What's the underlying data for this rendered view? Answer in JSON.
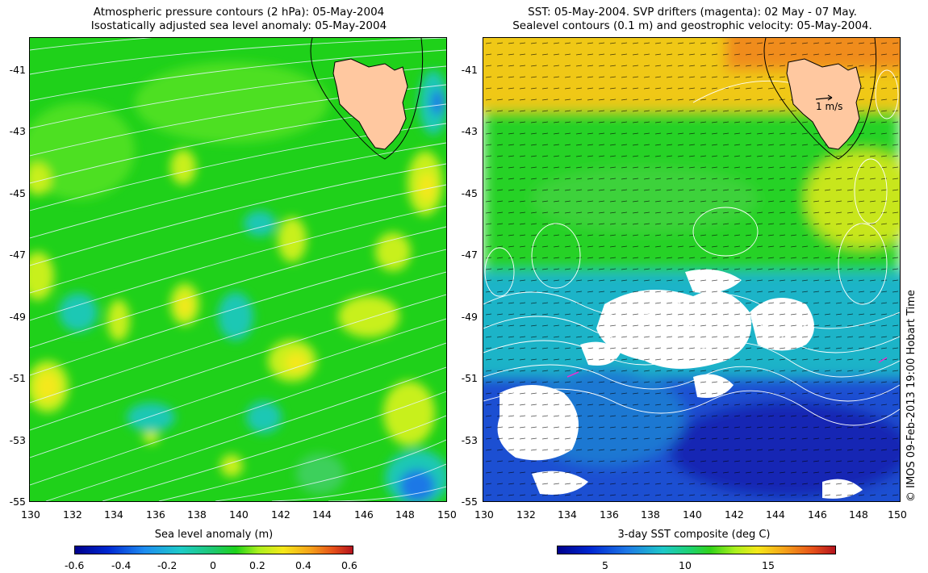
{
  "left": {
    "title_line1": "Atmospheric pressure contours (2 hPa): 05-May-2004",
    "title_line2": "Isostatically adjusted sea level anomaly: 05-May-2004",
    "colorbar_label": "Sea level anomaly (m)",
    "colorbar_ticks": [
      "-0.6",
      "-0.4",
      "-0.2",
      "0",
      "0.2",
      "0.4",
      "0.6"
    ],
    "colors": {
      "base": "#1fd11a",
      "high": "#c8f01e",
      "peak": "#f5e81a",
      "low": "#1ec8b4",
      "lowest": "#1e78e6",
      "land": "#ffc8a0"
    }
  },
  "right": {
    "title_line1": "SST: 05-May-2004. SVP drifters (magenta): 02 May - 07 May.",
    "title_line2": "Sealevel contours (0.1 m) and geostrophic velocity: 05-May-2004.",
    "colorbar_label": "3-day SST composite (deg C)",
    "colorbar_ticks": [
      "5",
      "10",
      "15"
    ],
    "velocity_scale_label": "1 m/s",
    "colors": {
      "warm": "#f0c814",
      "orange": "#f08c1e",
      "green": "#28d228",
      "cool": "#1eb4c8",
      "cold": "#1e50d2",
      "cloud": "#ffffff",
      "land": "#ffc8a0"
    }
  },
  "axes": {
    "x_ticks": [
      "130",
      "132",
      "134",
      "136",
      "138",
      "140",
      "142",
      "144",
      "146",
      "148",
      "150"
    ],
    "y_ticks": [
      "-41",
      "-43",
      "-45",
      "-47",
      "-49",
      "-51",
      "-53",
      "-55"
    ]
  },
  "credit": "© IMOS 09-Feb-2013 19:00 Hobart Time"
}
